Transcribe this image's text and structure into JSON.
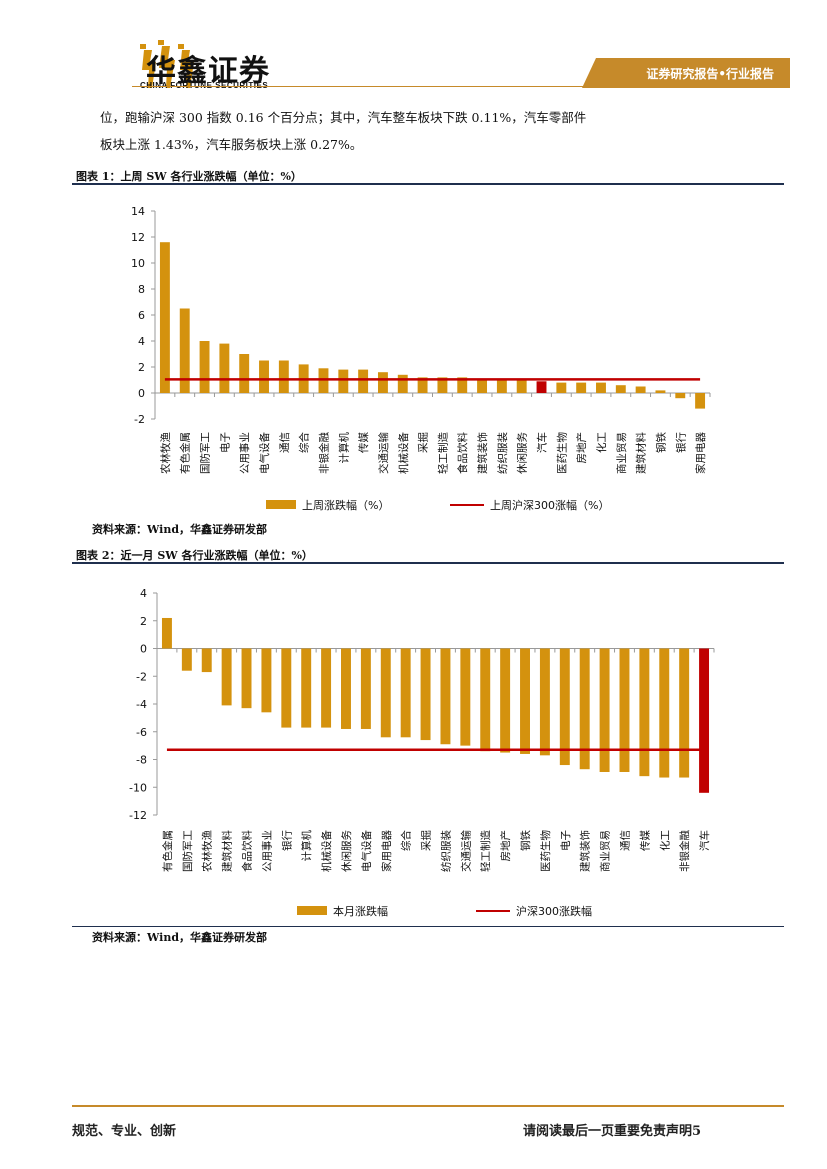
{
  "header": {
    "logo_cn": "华鑫证券",
    "logo_en": "CHINA FORTUNE SECURITIES",
    "tab_label": "证券研究报告•行业报告",
    "colors": {
      "gold": "#c68a2a",
      "navy": "#1f2f4e"
    }
  },
  "body_text": {
    "line1": "位，跑输沪深 300 指数 0.16 个百分点；其中，汽车整车板块下跌 0.11%，汽车零部件",
    "line2": "板块上涨 1.43%，汽车服务板块上涨 0.27%。"
  },
  "figure1": {
    "title": "图表 1：上周 SW 各行业涨跌幅（单位：%）",
    "source": "资料来源：Wind，华鑫证券研发部"
  },
  "figure2": {
    "title": "图表 2：近一月 SW 各行业涨跌幅（单位：%）",
    "source": "资料来源：Wind，华鑫证券研发部"
  },
  "chart_data": [
    {
      "type": "bar",
      "categories": [
        "农林牧渔",
        "有色金属",
        "国防军工",
        "电子",
        "公用事业",
        "电气设备",
        "通信",
        "综合",
        "非银金融",
        "计算机",
        "传媒",
        "交通运输",
        "机械设备",
        "采掘",
        "轻工制造",
        "食品饮料",
        "建筑装饰",
        "纺织服装",
        "休闲服务",
        "汽车",
        "医药生物",
        "房地产",
        "化工",
        "商业贸易",
        "建筑材料",
        "钢铁",
        "银行",
        "家用电器"
      ],
      "series": [
        {
          "name": "上周涨跌幅（%）",
          "values": [
            11.6,
            6.5,
            4.0,
            3.8,
            3.0,
            2.5,
            2.5,
            2.2,
            1.9,
            1.8,
            1.8,
            1.6,
            1.4,
            1.2,
            1.2,
            1.2,
            1.1,
            1.0,
            1.0,
            0.9,
            0.8,
            0.8,
            0.8,
            0.6,
            0.5,
            0.2,
            -0.4,
            -1.2
          ]
        },
        {
          "name": "上周沪深300涨幅（%）",
          "type": "line",
          "value": 1.05
        }
      ],
      "highlight_category": "汽车",
      "colors": {
        "bar": "#d4920e",
        "highlight": "#c00000",
        "line": "#c00000"
      },
      "yticks": [
        -2,
        0,
        2,
        4,
        6,
        8,
        10,
        12,
        14
      ],
      "ylim": [
        -2,
        14
      ],
      "legend": "bottom"
    },
    {
      "type": "bar",
      "categories": [
        "有色金属",
        "国防军工",
        "农林牧渔",
        "建筑材料",
        "食品饮料",
        "公用事业",
        "银行",
        "计算机",
        "机械设备",
        "休闲服务",
        "电气设备",
        "家用电器",
        "综合",
        "采掘",
        "纺织服装",
        "交通运输",
        "轻工制造",
        "房地产",
        "钢铁",
        "医药生物",
        "电子",
        "建筑装饰",
        "商业贸易",
        "通信",
        "传媒",
        "化工",
        "非银金融",
        "汽车"
      ],
      "series": [
        {
          "name": "本月涨跌幅",
          "values": [
            2.2,
            -1.6,
            -1.7,
            -4.1,
            -4.3,
            -4.6,
            -5.7,
            -5.7,
            -5.7,
            -5.8,
            -5.8,
            -6.4,
            -6.4,
            -6.6,
            -6.9,
            -7.0,
            -7.4,
            -7.5,
            -7.6,
            -7.7,
            -8.4,
            -8.7,
            -8.9,
            -8.9,
            -9.2,
            -9.3,
            -9.3,
            -10.4
          ]
        },
        {
          "name": "沪深300涨跌幅",
          "type": "line",
          "value": -7.3
        }
      ],
      "highlight_category": "汽车",
      "colors": {
        "bar": "#d4920e",
        "highlight": "#c00000",
        "line": "#c00000"
      },
      "yticks": [
        -12,
        -10,
        -8,
        -6,
        -4,
        -2,
        0,
        2,
        4
      ],
      "ylim": [
        -12,
        4
      ],
      "legend": "bottom"
    }
  ],
  "footer": {
    "left": "规范、专业、创新",
    "right": "请阅读最后一页重要免责声明5"
  }
}
